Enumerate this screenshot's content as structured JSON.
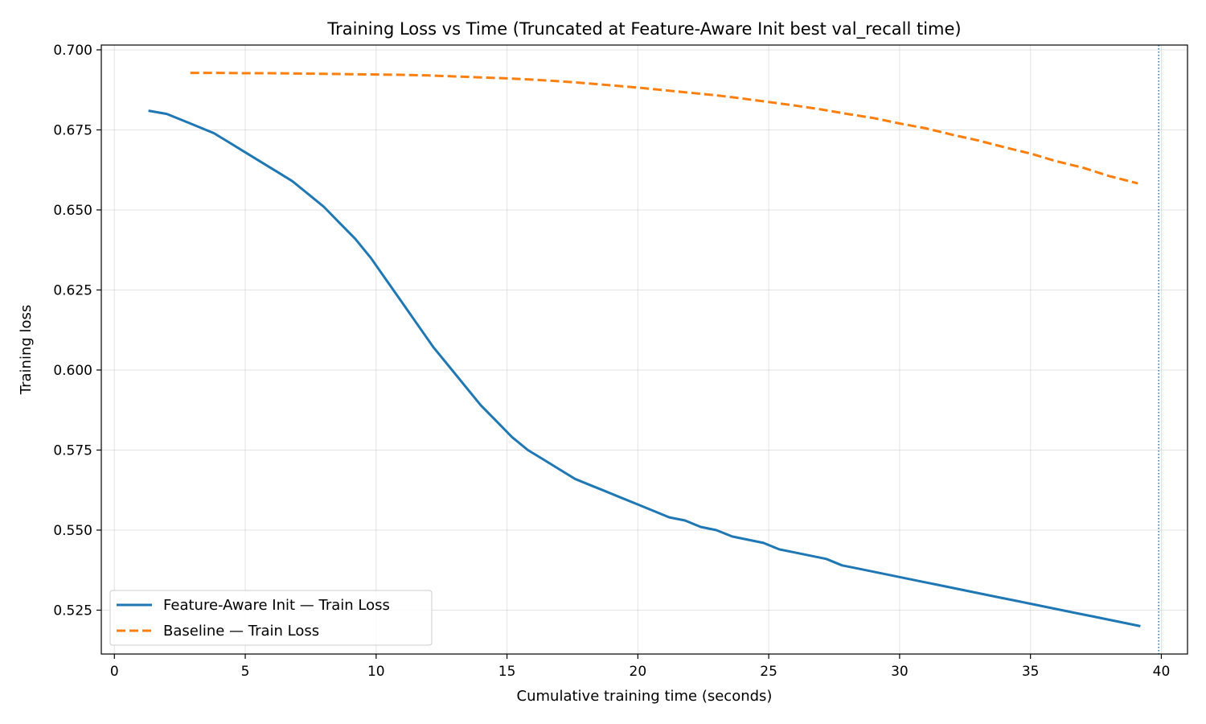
{
  "chart_data": {
    "type": "line",
    "title": "Training Loss vs Time (Truncated at Feature-Aware Init best val_recall time)",
    "xlabel": "Cumulative training time (seconds)",
    "ylabel": "Training loss",
    "xlim": [
      -0.5,
      41.0
    ],
    "ylim": [
      0.5113,
      0.7015
    ],
    "xticks": [
      0,
      5,
      10,
      15,
      20,
      25,
      30,
      35,
      40
    ],
    "yticks": [
      0.525,
      0.55,
      0.575,
      0.6,
      0.625,
      0.65,
      0.675,
      0.7
    ],
    "ytick_labels": [
      "0.525",
      "0.550",
      "0.575",
      "0.600",
      "0.625",
      "0.650",
      "0.675",
      "0.700"
    ],
    "grid": true,
    "legend_position": "lower-left",
    "vline": {
      "x": 39.9,
      "color": "#1f77b4",
      "style": "dotted"
    },
    "series": [
      {
        "name": "Feature-Aware Init — Train Loss",
        "color": "#1f77b4",
        "style": "solid",
        "x": [
          1.3,
          2.0,
          2.6,
          3.2,
          3.8,
          4.4,
          5.0,
          5.6,
          6.2,
          6.8,
          7.4,
          8.0,
          8.6,
          9.2,
          9.8,
          10.4,
          11.0,
          11.6,
          12.2,
          12.8,
          13.4,
          14.0,
          14.6,
          15.2,
          15.8,
          16.4,
          17.0,
          17.6,
          18.2,
          18.8,
          19.4,
          20.0,
          20.6,
          21.2,
          21.8,
          22.4,
          23.0,
          23.6,
          24.2,
          24.8,
          25.4,
          26.0,
          26.6,
          27.2,
          27.8,
          28.4,
          29.0,
          29.6,
          30.2,
          30.8,
          31.4,
          32.0,
          32.6,
          33.2,
          33.8,
          34.4,
          35.0,
          35.6,
          36.2,
          36.8,
          37.4,
          38.0,
          38.6,
          39.2
        ],
        "y": [
          0.681,
          0.68,
          0.678,
          0.676,
          0.674,
          0.671,
          0.668,
          0.665,
          0.662,
          0.659,
          0.655,
          0.651,
          0.646,
          0.641,
          0.635,
          0.628,
          0.621,
          0.614,
          0.607,
          0.601,
          0.595,
          0.589,
          0.584,
          0.579,
          0.575,
          0.572,
          0.569,
          0.566,
          0.564,
          0.562,
          0.56,
          0.558,
          0.556,
          0.554,
          0.553,
          0.551,
          0.55,
          0.548,
          0.547,
          0.546,
          0.544,
          0.543,
          0.542,
          0.541,
          0.539,
          0.538,
          0.537,
          0.536,
          0.535,
          0.534,
          0.533,
          0.532,
          0.531,
          0.53,
          0.529,
          0.528,
          0.527,
          0.526,
          0.525,
          0.524,
          0.523,
          0.522,
          0.521,
          0.52
        ]
      },
      {
        "name": "Baseline — Train Loss",
        "color": "#ff7f0e",
        "style": "dashed",
        "x": [
          2.9,
          4.0,
          5.0,
          6.0,
          7.0,
          8.0,
          9.0,
          10.0,
          11.0,
          12.0,
          13.0,
          14.0,
          15.0,
          16.0,
          17.0,
          18.0,
          19.0,
          20.0,
          21.0,
          22.0,
          23.0,
          24.0,
          25.0,
          26.0,
          27.0,
          28.0,
          29.0,
          30.0,
          31.0,
          32.0,
          33.0,
          34.0,
          35.0,
          36.0,
          37.0,
          38.0,
          39.1
        ],
        "y": [
          0.6928,
          0.6928,
          0.6927,
          0.6927,
          0.6926,
          0.6925,
          0.6924,
          0.6923,
          0.6922,
          0.692,
          0.6917,
          0.6914,
          0.6911,
          0.6907,
          0.6902,
          0.6896,
          0.6889,
          0.6882,
          0.6874,
          0.6866,
          0.6858,
          0.6848,
          0.6837,
          0.6826,
          0.6814,
          0.68,
          0.6787,
          0.677,
          0.6755,
          0.6735,
          0.6717,
          0.6696,
          0.6676,
          0.6652,
          0.6632,
          0.6606,
          0.6583
        ]
      }
    ]
  }
}
